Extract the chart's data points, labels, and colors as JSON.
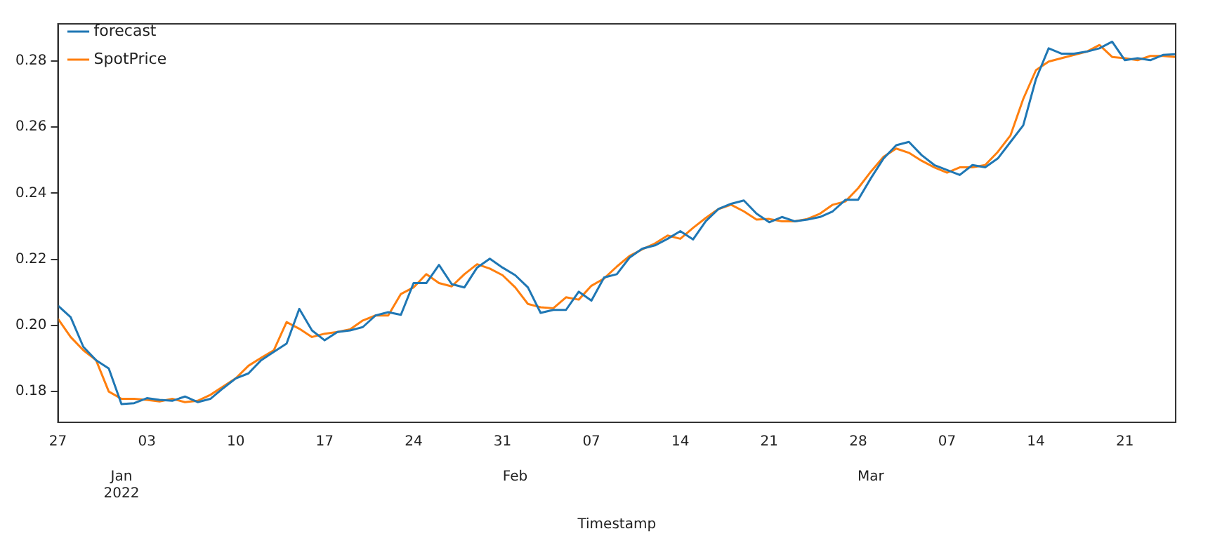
{
  "chart_data": {
    "type": "line",
    "xlabel": "Timestamp",
    "legend": "top left",
    "grid": false,
    "marker": "none",
    "line_style": "solid",
    "x": [
      "2021-12-27",
      "2021-12-28",
      "2021-12-29",
      "2021-12-30",
      "2021-12-31",
      "2022-01-01",
      "2022-01-02",
      "2022-01-03",
      "2022-01-04",
      "2022-01-05",
      "2022-01-06",
      "2022-01-07",
      "2022-01-08",
      "2022-01-09",
      "2022-01-10",
      "2022-01-11",
      "2022-01-12",
      "2022-01-13",
      "2022-01-14",
      "2022-01-15",
      "2022-01-16",
      "2022-01-17",
      "2022-01-18",
      "2022-01-19",
      "2022-01-20",
      "2022-01-21",
      "2022-01-22",
      "2022-01-23",
      "2022-01-24",
      "2022-01-25",
      "2022-01-26",
      "2022-01-27",
      "2022-01-28",
      "2022-01-29",
      "2022-01-30",
      "2022-01-31",
      "2022-02-01",
      "2022-02-02",
      "2022-02-03",
      "2022-02-04",
      "2022-02-05",
      "2022-02-06",
      "2022-02-07",
      "2022-02-08",
      "2022-02-09",
      "2022-02-10",
      "2022-02-11",
      "2022-02-12",
      "2022-02-13",
      "2022-02-14",
      "2022-02-15",
      "2022-02-16",
      "2022-02-17",
      "2022-02-18",
      "2022-02-19",
      "2022-02-20",
      "2022-02-21",
      "2022-02-22",
      "2022-02-23",
      "2022-02-24",
      "2022-02-25",
      "2022-02-26",
      "2022-02-27",
      "2022-02-28",
      "2022-03-01",
      "2022-03-02",
      "2022-03-03",
      "2022-03-04",
      "2022-03-05",
      "2022-03-06",
      "2022-03-07",
      "2022-03-08",
      "2022-03-09",
      "2022-03-10",
      "2022-03-11",
      "2022-03-12",
      "2022-03-13",
      "2022-03-14",
      "2022-03-15",
      "2022-03-16",
      "2022-03-17",
      "2022-03-18",
      "2022-03-19",
      "2022-03-20",
      "2022-03-21",
      "2022-03-22",
      "2022-03-23",
      "2022-03-24",
      "2022-03-25"
    ],
    "series": [
      {
        "name": "forecast",
        "color": "#1f77b4",
        "values": [
          0.206,
          0.2025,
          0.1935,
          0.1895,
          0.187,
          0.1762,
          0.1765,
          0.178,
          0.1775,
          0.1772,
          0.1785,
          0.1768,
          0.1778,
          0.181,
          0.184,
          0.1855,
          0.1895,
          0.192,
          0.1945,
          0.205,
          0.1985,
          0.1955,
          0.198,
          0.1985,
          0.1995,
          0.203,
          0.204,
          0.2032,
          0.2128,
          0.2128,
          0.2183,
          0.2125,
          0.2115,
          0.2175,
          0.2202,
          0.2175,
          0.2152,
          0.2115,
          0.2038,
          0.2047,
          0.2047,
          0.2102,
          0.2075,
          0.2145,
          0.2155,
          0.2205,
          0.2232,
          0.2242,
          0.2262,
          0.2285,
          0.226,
          0.2315,
          0.2352,
          0.2368,
          0.2378,
          0.2338,
          0.2312,
          0.2328,
          0.2315,
          0.232,
          0.2328,
          0.2345,
          0.238,
          0.238,
          0.2445,
          0.2505,
          0.2545,
          0.2555,
          0.2515,
          0.2485,
          0.247,
          0.2455,
          0.2485,
          0.2478,
          0.2505,
          0.2555,
          0.2605,
          0.2745,
          0.2838,
          0.2822,
          0.2822,
          0.2828,
          0.2838,
          0.2858,
          0.2802,
          0.2808,
          0.2802,
          0.2818,
          0.282
        ]
      },
      {
        "name": "SpotPrice",
        "color": "#ff7f0e",
        "values": [
          0.202,
          0.1965,
          0.1925,
          0.1895,
          0.18,
          0.1778,
          0.1778,
          0.1775,
          0.177,
          0.1778,
          0.1768,
          0.1772,
          0.179,
          0.1815,
          0.184,
          0.1878,
          0.1902,
          0.1925,
          0.201,
          0.199,
          0.1965,
          0.1975,
          0.198,
          0.1988,
          0.2015,
          0.203,
          0.203,
          0.2095,
          0.2115,
          0.2155,
          0.2128,
          0.2118,
          0.2155,
          0.2185,
          0.2172,
          0.2152,
          0.2115,
          0.2065,
          0.2055,
          0.2052,
          0.2085,
          0.2078,
          0.212,
          0.2142,
          0.2178,
          0.221,
          0.223,
          0.2248,
          0.2272,
          0.2262,
          0.2295,
          0.2325,
          0.2352,
          0.2365,
          0.2345,
          0.232,
          0.2322,
          0.2315,
          0.2315,
          0.2322,
          0.2338,
          0.2365,
          0.2375,
          0.2415,
          0.2465,
          0.251,
          0.2535,
          0.2522,
          0.2498,
          0.2478,
          0.2462,
          0.2478,
          0.2478,
          0.2485,
          0.2525,
          0.2575,
          0.2685,
          0.2772,
          0.2798,
          0.2808,
          0.2818,
          0.2828,
          0.2848,
          0.2812,
          0.2808,
          0.2802,
          0.2815,
          0.2815,
          0.2812
        ]
      }
    ],
    "xlim": [
      "2021-12-27",
      "2022-03-25"
    ],
    "x2lim": [
      "2021-12-27",
      "2022-03-25"
    ],
    "x2ticks": [
      {
        "value": "2022-01-01",
        "label": "Jan\n2022"
      },
      {
        "value": "2022-02-01",
        "label": "Feb"
      },
      {
        "value": "2022-03-01",
        "label": "Mar"
      }
    ],
    "xticks": [
      {
        "value": "2021-12-27",
        "label": "27"
      },
      {
        "value": "2022-01-03",
        "label": "03"
      },
      {
        "value": "2022-01-10",
        "label": "10"
      },
      {
        "value": "2022-01-17",
        "label": "17"
      },
      {
        "value": "2022-01-24",
        "label": "24"
      },
      {
        "value": "2022-01-31",
        "label": "31"
      },
      {
        "value": "2022-02-07",
        "label": "07"
      },
      {
        "value": "2022-02-14",
        "label": "14"
      },
      {
        "value": "2022-02-21",
        "label": "21"
      },
      {
        "value": "2022-02-28",
        "label": "28"
      },
      {
        "value": "2022-03-07",
        "label": "07"
      },
      {
        "value": "2022-03-14",
        "label": "14"
      },
      {
        "value": "2022-03-21",
        "label": "21"
      }
    ],
    "ylim": [
      0.1707,
      0.2912
    ],
    "yticks": [
      0.18,
      {
        "value": 0.2,
        "label": "0.20"
      },
      0.22,
      0.24,
      0.26,
      0.28
    ]
  }
}
